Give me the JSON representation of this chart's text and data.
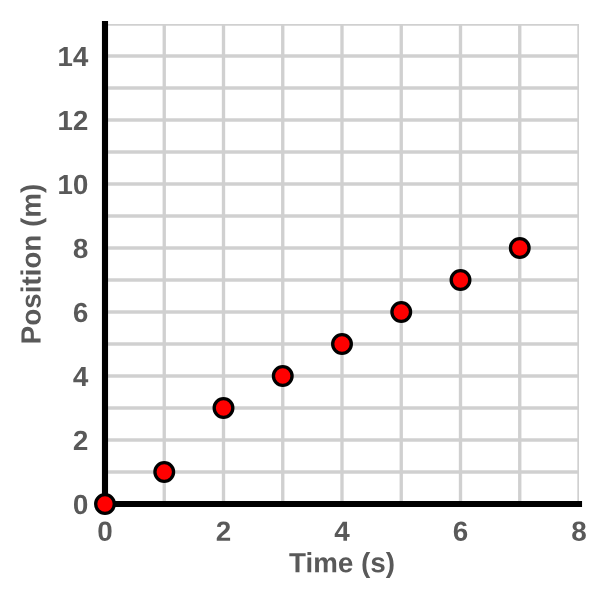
{
  "chart_data": {
    "type": "scatter",
    "xlabel": "Time (s)",
    "ylabel": "Position (m)",
    "x": [
      0,
      1,
      2,
      3,
      4,
      5,
      6,
      7
    ],
    "series": [
      {
        "color": "#ff0000",
        "values": [
          0,
          1,
          3,
          4,
          5,
          6,
          7,
          8
        ]
      }
    ],
    "xlim": [
      0,
      8
    ],
    "ylim": [
      0,
      15
    ],
    "xticks": [
      0,
      {
        "value": 1,
        "label": null
      },
      2,
      {
        "value": 3,
        "label": null
      },
      4,
      {
        "value": 5,
        "label": null
      },
      6,
      {
        "value": 7,
        "label": null
      },
      8
    ],
    "yticks": [
      0,
      {
        "value": 1,
        "label": null
      },
      2,
      {
        "value": 3,
        "label": null
      },
      4,
      {
        "value": 5,
        "label": null
      },
      6,
      {
        "value": 7,
        "label": null
      },
      8,
      {
        "value": 9,
        "label": null
      },
      10,
      {
        "value": 11,
        "label": null
      },
      12,
      {
        "value": 13,
        "label": null
      },
      14,
      {
        "value": 15,
        "label": null
      }
    ],
    "grid": true,
    "marker": "circle"
  }
}
